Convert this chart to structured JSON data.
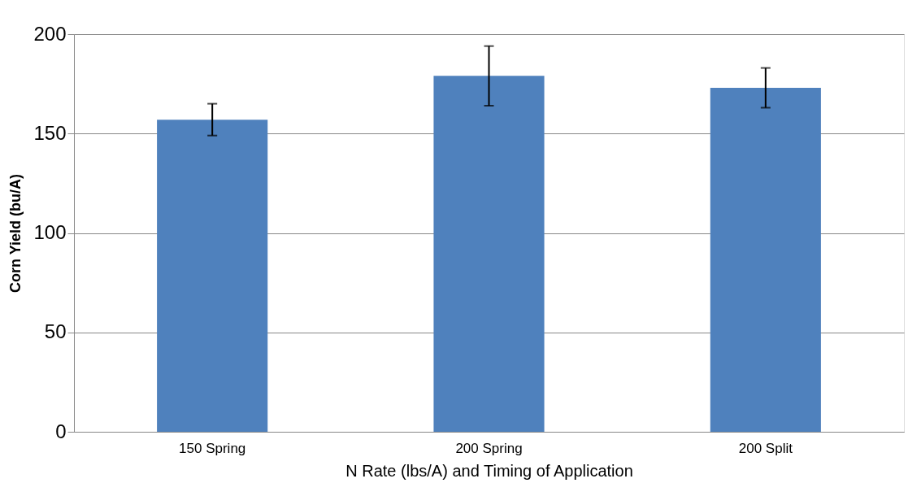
{
  "chart_data": {
    "type": "bar",
    "xlabel": "N Rate (lbs/A) and Timing of Application",
    "ylabel": "Corn Yield  (bu/A)",
    "categories": [
      "150 Spring",
      "200 Spring",
      "200 Split"
    ],
    "values": [
      157,
      179,
      173
    ],
    "errors": [
      8,
      15,
      10
    ],
    "color": "#4f81bd",
    "ylim": [
      0,
      200
    ],
    "yticks": [
      0,
      50,
      100,
      150,
      200
    ],
    "grid": "y"
  }
}
